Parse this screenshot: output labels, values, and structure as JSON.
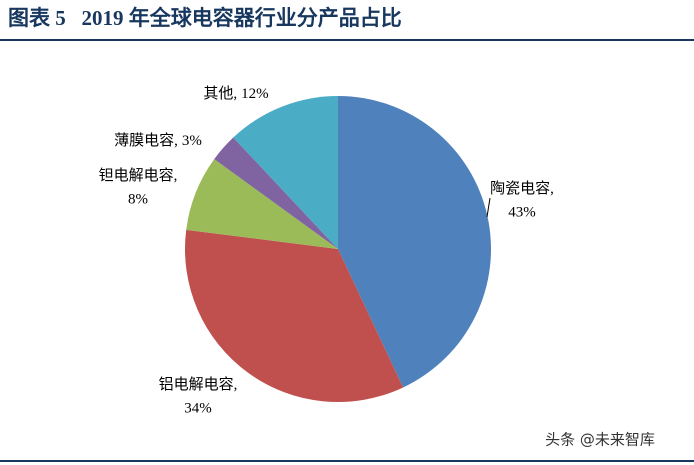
{
  "chart_data": {
    "type": "pie",
    "title": "图表 5   2019 年全球电容器行业分产品占比",
    "categories": [
      "陶瓷电容",
      "铝电解电容",
      "钽电解电容",
      "薄膜电容",
      "其他"
    ],
    "values": [
      43,
      34,
      8,
      3,
      12
    ],
    "value_labels": [
      "43%",
      "34%",
      "8%",
      "3%",
      "12%"
    ],
    "label_separator": ",",
    "colors": [
      "#4f81bd",
      "#c0504d",
      "#9bbb59",
      "#8064a2",
      "#4bacc6"
    ]
  },
  "watermark": "头条 @未来智库"
}
